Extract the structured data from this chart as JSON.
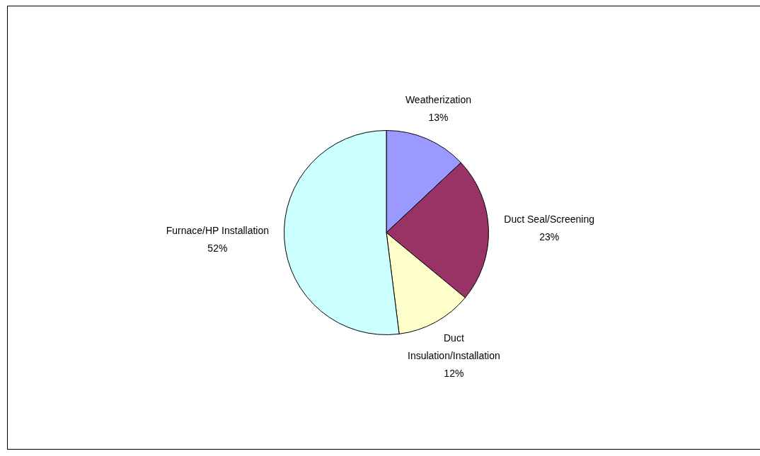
{
  "chart_data": {
    "type": "pie",
    "categories": [
      "Weatherization",
      "Duct Seal/Screening",
      "Duct Insulation/Installation",
      "Furnace/HP Installation"
    ],
    "values": [
      13,
      23,
      12,
      52
    ],
    "value_labels": [
      "13%",
      "23%",
      "12%",
      "52%"
    ],
    "colors": [
      "#9999ff",
      "#993366",
      "#ffffcc",
      "#ccffff"
    ]
  }
}
